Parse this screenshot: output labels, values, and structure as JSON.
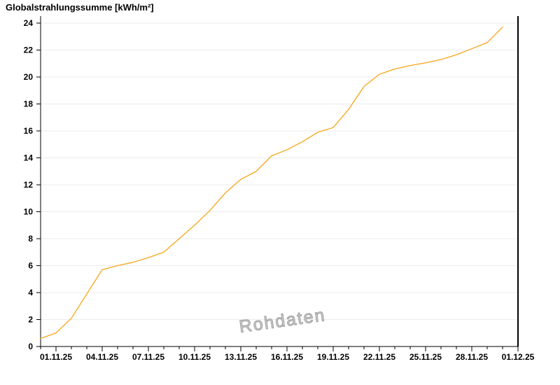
{
  "page": {
    "background": "#ffffff"
  },
  "chart_data": {
    "type": "line",
    "title": "Globalstrahlungssumme [kWh/m²]",
    "watermark": "Rohdaten",
    "legend": "none",
    "grid": {
      "horizontal": true,
      "vertical": false,
      "color": "#ececec"
    },
    "axis_color": "#000000",
    "x_axis": {
      "domain_days": [
        0,
        31
      ],
      "minor_tick_step_days": 1,
      "tick_labels": [
        "01.11.25",
        "04.11.25",
        "07.11.25",
        "10.11.25",
        "13.11.25",
        "16.11.25",
        "19.11.25",
        "22.11.25",
        "25.11.25",
        "28.11.25",
        "01.12.25"
      ],
      "tick_day_positions": [
        1,
        4,
        7,
        10,
        13,
        16,
        19,
        22,
        25,
        28,
        31
      ]
    },
    "y_axis": {
      "min": 0,
      "max": 24,
      "tick_step": 2,
      "ticks": [
        0,
        2,
        4,
        6,
        8,
        10,
        12,
        14,
        16,
        18,
        20,
        22,
        24
      ]
    },
    "series": [
      {
        "name": "Globalstrahlungssumme [kWh/m²]",
        "color": "#F8A51B",
        "points": [
          [
            0,
            0.6
          ],
          [
            1,
            1.0
          ],
          [
            2,
            2.1
          ],
          [
            3,
            3.9
          ],
          [
            4,
            5.7
          ],
          [
            5,
            6.0
          ],
          [
            6,
            6.25
          ],
          [
            7,
            6.6
          ],
          [
            8,
            7.0
          ],
          [
            9,
            8.0
          ],
          [
            10,
            9.0
          ],
          [
            11,
            10.1
          ],
          [
            12,
            11.4
          ],
          [
            13,
            12.4
          ],
          [
            14,
            13.0
          ],
          [
            15,
            14.15
          ],
          [
            16,
            14.6
          ],
          [
            17,
            15.2
          ],
          [
            18,
            15.9
          ],
          [
            19,
            16.25
          ],
          [
            20,
            17.6
          ],
          [
            21,
            19.3
          ],
          [
            22,
            20.2
          ],
          [
            23,
            20.6
          ],
          [
            24,
            20.85
          ],
          [
            25,
            21.05
          ],
          [
            26,
            21.3
          ],
          [
            27,
            21.65
          ],
          [
            28,
            22.1
          ],
          [
            29,
            22.55
          ],
          [
            30,
            23.7
          ]
        ]
      }
    ]
  }
}
